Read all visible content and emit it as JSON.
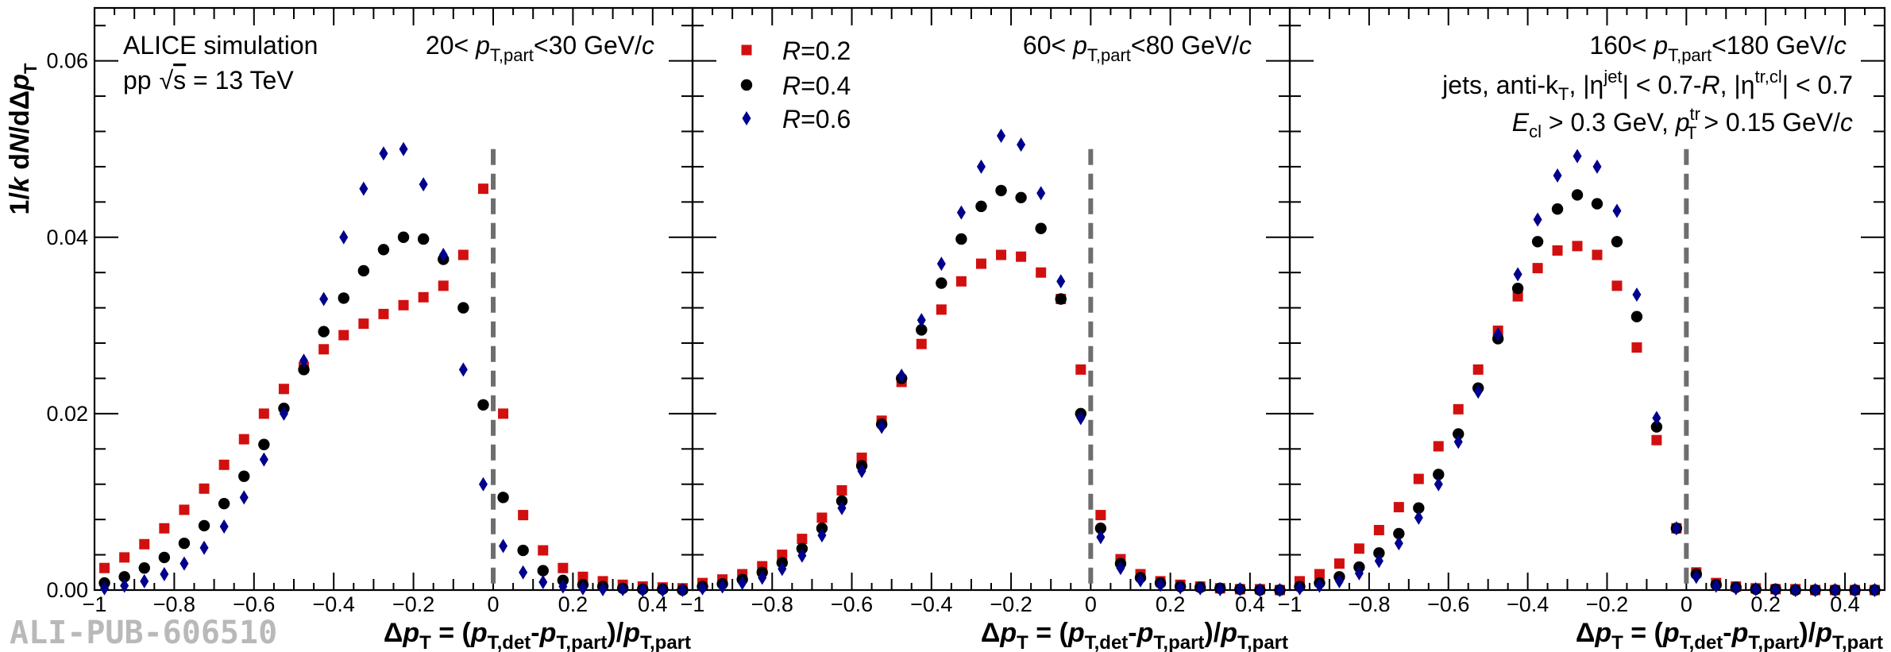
{
  "watermark": "ALI-PUB-606510",
  "colors": {
    "r02": "#d20f0f",
    "r04": "#000000",
    "r06": "#00008c",
    "reference": "#6e6e6e"
  },
  "figure": {
    "ylabel": "1/k dN/dΔp_T",
    "xlabel": "Δp_T = (p_T,det - p_T,part)/p_T,part",
    "text": {
      "alice": "ALICE simulation",
      "pp": "pp",
      "sqrt_s": "s",
      "energy": " = 13 TeV",
      "jets_line": [
        "jets, anti-k",
        "T",
        ", |η",
        "jet",
        "| < 0.7-",
        "R",
        ", |η",
        "tr,cl",
        "| < 0.7"
      ],
      "cuts_line": [
        "E",
        "cl",
        " > 0.3 GeV, ",
        "p",
        "tr",
        "T",
        " > 0.15 GeV/",
        "c"
      ]
    },
    "legend": [
      {
        "letter": "R",
        "text": "=0.2",
        "marker": "square",
        "color": "#d20f0f"
      },
      {
        "letter": "R",
        "text": "=0.4",
        "marker": "circle",
        "color": "#000000"
      },
      {
        "letter": "R",
        "text": "=0.6",
        "marker": "diamond",
        "color": "#00008c"
      }
    ],
    "panel_labels": [
      {
        "pre": "20< ",
        "p": "p",
        "sub": "T,part",
        "post": "<30 GeV/",
        "c": "c"
      },
      {
        "pre": "60< ",
        "p": "p",
        "sub": "T,part",
        "post": "<80 GeV/",
        "c": "c"
      },
      {
        "pre": "160< ",
        "p": "p",
        "sub": "T,part",
        "post": "<180 GeV/",
        "c": "c"
      }
    ]
  },
  "chart_data": [
    {
      "type": "scatter",
      "title": "20< pT,part <30 GeV/c",
      "xlim": [
        -1.0,
        0.5
      ],
      "ylim": [
        0,
        0.066
      ],
      "xticks": [
        -1,
        -0.8,
        -0.6,
        -0.4,
        -0.2,
        0,
        0.2,
        0.4
      ],
      "xticklabels": [
        "−1",
        "−0.8",
        "−0.6",
        "−0.4",
        "−0.2",
        "0",
        "0.2",
        "0.4"
      ],
      "yticks": [
        0,
        0.02,
        0.04,
        0.06
      ],
      "yticklabels": [
        "0.00",
        "0.02",
        "0.04",
        "0.06"
      ],
      "series": [
        {
          "name": "R=0.2",
          "marker": "square",
          "x": [
            -0.975,
            -0.925,
            -0.875,
            -0.825,
            -0.775,
            -0.725,
            -0.675,
            -0.625,
            -0.575,
            -0.525,
            -0.475,
            -0.425,
            -0.375,
            -0.325,
            -0.275,
            -0.225,
            -0.175,
            -0.125,
            -0.075,
            -0.025,
            0.025,
            0.075,
            0.125,
            0.175,
            0.225,
            0.275,
            0.325,
            0.375,
            0.425,
            0.475
          ],
          "y": [
            0.0025,
            0.0037,
            0.0052,
            0.007,
            0.0091,
            0.0115,
            0.0142,
            0.0171,
            0.02,
            0.0228,
            0.0253,
            0.0273,
            0.0289,
            0.0302,
            0.0313,
            0.0323,
            0.0332,
            0.0345,
            0.038,
            0.0455,
            0.02,
            0.0085,
            0.0045,
            0.0025,
            0.0015,
            0.001,
            0.0006,
            0.0004,
            0.0003,
            0.0002
          ]
        },
        {
          "name": "R=0.4",
          "marker": "circle",
          "x": [
            -0.975,
            -0.925,
            -0.875,
            -0.825,
            -0.775,
            -0.725,
            -0.675,
            -0.625,
            -0.575,
            -0.525,
            -0.475,
            -0.425,
            -0.375,
            -0.325,
            -0.275,
            -0.225,
            -0.175,
            -0.125,
            -0.075,
            -0.025,
            0.025,
            0.075,
            0.125,
            0.175,
            0.225,
            0.275,
            0.325,
            0.375,
            0.425,
            0.475
          ],
          "y": [
            0.0008,
            0.0015,
            0.0025,
            0.0037,
            0.0053,
            0.0073,
            0.0098,
            0.0129,
            0.0165,
            0.0206,
            0.025,
            0.0293,
            0.0331,
            0.0362,
            0.0386,
            0.04,
            0.0398,
            0.0375,
            0.032,
            0.021,
            0.0105,
            0.0045,
            0.0022,
            0.0011,
            0.0006,
            0.0004,
            0.0002,
            0.0001,
            0.0001,
            0.0
          ]
        },
        {
          "name": "R=0.6",
          "marker": "diamond",
          "x": [
            -0.975,
            -0.925,
            -0.875,
            -0.825,
            -0.775,
            -0.725,
            -0.675,
            -0.625,
            -0.575,
            -0.525,
            -0.475,
            -0.425,
            -0.375,
            -0.325,
            -0.275,
            -0.225,
            -0.175,
            -0.125,
            -0.075,
            -0.025,
            0.025,
            0.075,
            0.125,
            0.175,
            0.225,
            0.275,
            0.325,
            0.375,
            0.425,
            0.475
          ],
          "y": [
            0.0002,
            0.0005,
            0.001,
            0.0018,
            0.003,
            0.0048,
            0.0072,
            0.0105,
            0.0148,
            0.02,
            0.026,
            0.033,
            0.04,
            0.0455,
            0.0495,
            0.05,
            0.046,
            0.038,
            0.025,
            0.012,
            0.005,
            0.002,
            0.0009,
            0.0004,
            0.0002,
            0.0001,
            0.0001,
            0.0,
            0.0,
            0.0
          ]
        }
      ]
    },
    {
      "type": "scatter",
      "title": "60< pT,part <80 GeV/c",
      "xlim": [
        -1.0,
        0.5
      ],
      "ylim": [
        0,
        0.066
      ],
      "xticks": [
        -1,
        -0.8,
        -0.6,
        -0.4,
        -0.2,
        0,
        0.2,
        0.4
      ],
      "xticklabels": [
        "−1",
        "−0.8",
        "−0.6",
        "−0.4",
        "−0.2",
        "0",
        "0.2",
        "0.4"
      ],
      "series": [
        {
          "name": "R=0.2",
          "marker": "square",
          "x": [
            -0.975,
            -0.925,
            -0.875,
            -0.825,
            -0.775,
            -0.725,
            -0.675,
            -0.625,
            -0.575,
            -0.525,
            -0.475,
            -0.425,
            -0.375,
            -0.325,
            -0.275,
            -0.225,
            -0.175,
            -0.125,
            -0.075,
            -0.025,
            0.025,
            0.075,
            0.125,
            0.175,
            0.225,
            0.275,
            0.325,
            0.375,
            0.425,
            0.475
          ],
          "y": [
            0.0008,
            0.0012,
            0.0018,
            0.0027,
            0.004,
            0.0058,
            0.0082,
            0.0113,
            0.015,
            0.0192,
            0.0236,
            0.0279,
            0.0318,
            0.035,
            0.037,
            0.038,
            0.0378,
            0.036,
            0.033,
            0.025,
            0.0085,
            0.0035,
            0.0018,
            0.001,
            0.0006,
            0.0004,
            0.0002,
            0.0001,
            0.0001,
            0.0
          ]
        },
        {
          "name": "R=0.4",
          "marker": "circle",
          "x": [
            -0.975,
            -0.925,
            -0.875,
            -0.825,
            -0.775,
            -0.725,
            -0.675,
            -0.625,
            -0.575,
            -0.525,
            -0.475,
            -0.425,
            -0.375,
            -0.325,
            -0.275,
            -0.225,
            -0.175,
            -0.125,
            -0.075,
            -0.025,
            0.025,
            0.075,
            0.125,
            0.175,
            0.225,
            0.275,
            0.325,
            0.375,
            0.425,
            0.475
          ],
          "y": [
            0.0004,
            0.0007,
            0.0012,
            0.002,
            0.0031,
            0.0047,
            0.007,
            0.0101,
            0.0141,
            0.0188,
            0.024,
            0.0295,
            0.0348,
            0.0398,
            0.0435,
            0.0453,
            0.0445,
            0.041,
            0.033,
            0.02,
            0.007,
            0.003,
            0.0014,
            0.0008,
            0.0004,
            0.0003,
            0.0002,
            0.0001,
            0.0,
            0.0
          ]
        },
        {
          "name": "R=0.6",
          "marker": "diamond",
          "x": [
            -0.975,
            -0.925,
            -0.875,
            -0.825,
            -0.775,
            -0.725,
            -0.675,
            -0.625,
            -0.575,
            -0.525,
            -0.475,
            -0.425,
            -0.375,
            -0.325,
            -0.275,
            -0.225,
            -0.175,
            -0.125,
            -0.075,
            -0.025,
            0.025,
            0.075,
            0.125,
            0.175,
            0.225,
            0.275,
            0.325,
            0.375,
            0.425,
            0.475
          ],
          "y": [
            0.0002,
            0.0004,
            0.0008,
            0.0014,
            0.0024,
            0.0039,
            0.0062,
            0.0093,
            0.0135,
            0.0185,
            0.0243,
            0.0306,
            0.037,
            0.0428,
            0.048,
            0.0515,
            0.0505,
            0.045,
            0.035,
            0.0195,
            0.006,
            0.0025,
            0.0011,
            0.0006,
            0.0003,
            0.0002,
            0.0001,
            0.0001,
            0.0,
            0.0
          ]
        }
      ]
    },
    {
      "type": "scatter",
      "title": "160< pT,part <180 GeV/c",
      "xlim": [
        -1.0,
        0.5
      ],
      "ylim": [
        0,
        0.066
      ],
      "xticks": [
        -1,
        -0.8,
        -0.6,
        -0.4,
        -0.2,
        0,
        0.2,
        0.4
      ],
      "xticklabels": [
        "−1",
        "−0.8",
        "−0.6",
        "−0.4",
        "−0.2",
        "0",
        "0.2",
        "0.4"
      ],
      "series": [
        {
          "name": "R=0.2",
          "marker": "square",
          "x": [
            -0.975,
            -0.925,
            -0.875,
            -0.825,
            -0.775,
            -0.725,
            -0.675,
            -0.625,
            -0.575,
            -0.525,
            -0.475,
            -0.425,
            -0.375,
            -0.325,
            -0.275,
            -0.225,
            -0.175,
            -0.125,
            -0.075,
            -0.025,
            0.025,
            0.075,
            0.125,
            0.175,
            0.225,
            0.275,
            0.325,
            0.375,
            0.425,
            0.475
          ],
          "y": [
            0.001,
            0.0018,
            0.003,
            0.0047,
            0.0068,
            0.0094,
            0.0126,
            0.0163,
            0.0205,
            0.025,
            0.0294,
            0.0333,
            0.0365,
            0.0385,
            0.039,
            0.038,
            0.0345,
            0.0275,
            0.017,
            0.007,
            0.002,
            0.0008,
            0.0004,
            0.0002,
            0.0001,
            0.0001,
            0.0,
            0.0,
            0.0,
            0.0
          ]
        },
        {
          "name": "R=0.4",
          "marker": "circle",
          "x": [
            -0.975,
            -0.925,
            -0.875,
            -0.825,
            -0.775,
            -0.725,
            -0.675,
            -0.625,
            -0.575,
            -0.525,
            -0.475,
            -0.425,
            -0.375,
            -0.325,
            -0.275,
            -0.225,
            -0.175,
            -0.125,
            -0.075,
            -0.025,
            0.025,
            0.075,
            0.125,
            0.175,
            0.225,
            0.275,
            0.325,
            0.375,
            0.425,
            0.475
          ],
          "y": [
            0.0004,
            0.0008,
            0.0015,
            0.0026,
            0.0042,
            0.0064,
            0.0093,
            0.0131,
            0.0177,
            0.0229,
            0.0285,
            0.0342,
            0.0395,
            0.0432,
            0.0448,
            0.0438,
            0.0395,
            0.031,
            0.0185,
            0.007,
            0.0018,
            0.0006,
            0.0003,
            0.0001,
            0.0001,
            0.0,
            0.0,
            0.0,
            0.0,
            0.0
          ]
        },
        {
          "name": "R=0.6",
          "marker": "diamond",
          "x": [
            -0.975,
            -0.925,
            -0.875,
            -0.825,
            -0.775,
            -0.725,
            -0.675,
            -0.625,
            -0.575,
            -0.525,
            -0.475,
            -0.425,
            -0.375,
            -0.325,
            -0.275,
            -0.225,
            -0.175,
            -0.125,
            -0.075,
            -0.025,
            0.025,
            0.075,
            0.125,
            0.175,
            0.225,
            0.275,
            0.325,
            0.375,
            0.425,
            0.475
          ],
          "y": [
            0.0002,
            0.0005,
            0.001,
            0.0019,
            0.0033,
            0.0053,
            0.0082,
            0.012,
            0.0168,
            0.0225,
            0.029,
            0.0358,
            0.042,
            0.047,
            0.0492,
            0.048,
            0.043,
            0.0335,
            0.0195,
            0.007,
            0.0015,
            0.0005,
            0.0002,
            0.0001,
            0.0,
            0.0,
            0.0,
            0.0,
            0.0,
            0.0
          ]
        }
      ]
    }
  ]
}
